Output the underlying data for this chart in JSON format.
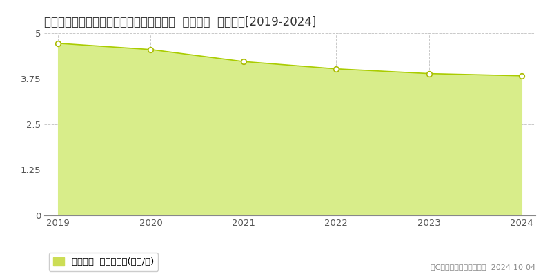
{
  "title": "奈良県吉野郡大淀町大字越部１８７番２外  基準地価  地価推移[2019-2024]",
  "years": [
    2019,
    2020,
    2021,
    2022,
    2023,
    2024
  ],
  "values": [
    4.72,
    4.55,
    4.22,
    4.02,
    3.89,
    3.83
  ],
  "ylim": [
    0,
    5.0
  ],
  "yticks": [
    0,
    1.25,
    2.5,
    3.75,
    5.0
  ],
  "line_color": "#aacc00",
  "fill_color": "#d8ed8a",
  "marker_color": "#ffffff",
  "marker_edge_color": "#aabb00",
  "bg_color": "#ffffff",
  "plot_bg_color": "#ffffff",
  "grid_color": "#bbbbbb",
  "legend_label": "基準地価  平均坪単価(万円/坪)",
  "legend_square_color": "#ccdd55",
  "copyright_text": "（C）土地価格ドットコム  2024-10-04",
  "title_fontsize": 12,
  "tick_fontsize": 9.5,
  "legend_fontsize": 9.5,
  "copyright_fontsize": 8
}
